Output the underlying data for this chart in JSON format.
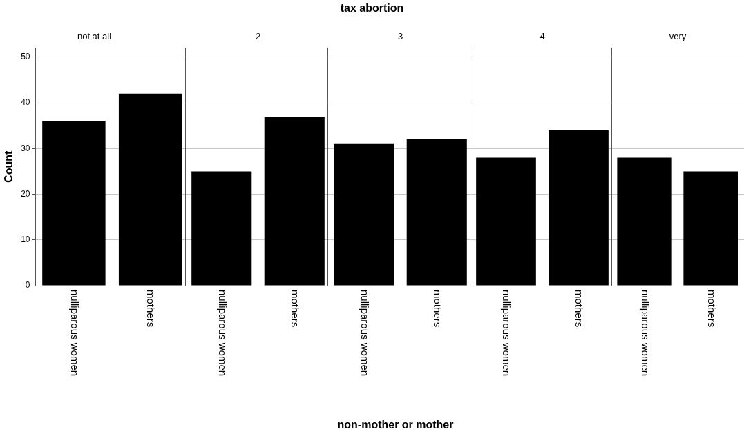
{
  "chart_data": [
    {
      "type": "bar",
      "title": "not at all",
      "ylabel": "Count",
      "categories": [
        "nulliparous women",
        "mothers"
      ],
      "values": [
        36,
        42
      ],
      "color": "#000000",
      "ylim": [
        0,
        52
      ],
      "yticks": [
        0,
        10,
        20,
        30,
        40,
        50
      ],
      "grid": "y"
    },
    {
      "type": "bar",
      "title": "2",
      "categories": [
        "nulliparous women",
        "mothers"
      ],
      "values": [
        25,
        37
      ],
      "color": "#000000",
      "ylim": [
        0,
        52
      ],
      "yticks": [
        0,
        10,
        20,
        30,
        40,
        50
      ],
      "grid": "y",
      "tick_labels": "x"
    },
    {
      "type": "bar",
      "title": "3",
      "xlabel": "non-mother or mother",
      "annotations": [
        "tax abortion"
      ],
      "categories": [
        "nulliparous women",
        "mothers"
      ],
      "values": [
        31,
        32
      ],
      "color": "#000000",
      "ylim": [
        0,
        52
      ],
      "yticks": [
        0,
        10,
        20,
        30,
        40,
        50
      ],
      "grid": "y",
      "tick_labels": "x"
    },
    {
      "type": "bar",
      "title": "4",
      "categories": [
        "nulliparous women",
        "mothers"
      ],
      "values": [
        28,
        34
      ],
      "color": "#000000",
      "ylim": [
        0,
        52
      ],
      "yticks": [
        0,
        10,
        20,
        30,
        40,
        50
      ],
      "grid": "y",
      "tick_labels": "x"
    },
    {
      "type": "bar",
      "title": "very",
      "categories": [
        "nulliparous women",
        "mothers"
      ],
      "values": [
        28,
        25
      ],
      "color": "#000000",
      "ylim": [
        0,
        52
      ],
      "yticks": [
        0,
        10,
        20,
        30,
        40,
        50
      ],
      "grid": "y",
      "tick_labels": "x"
    }
  ]
}
